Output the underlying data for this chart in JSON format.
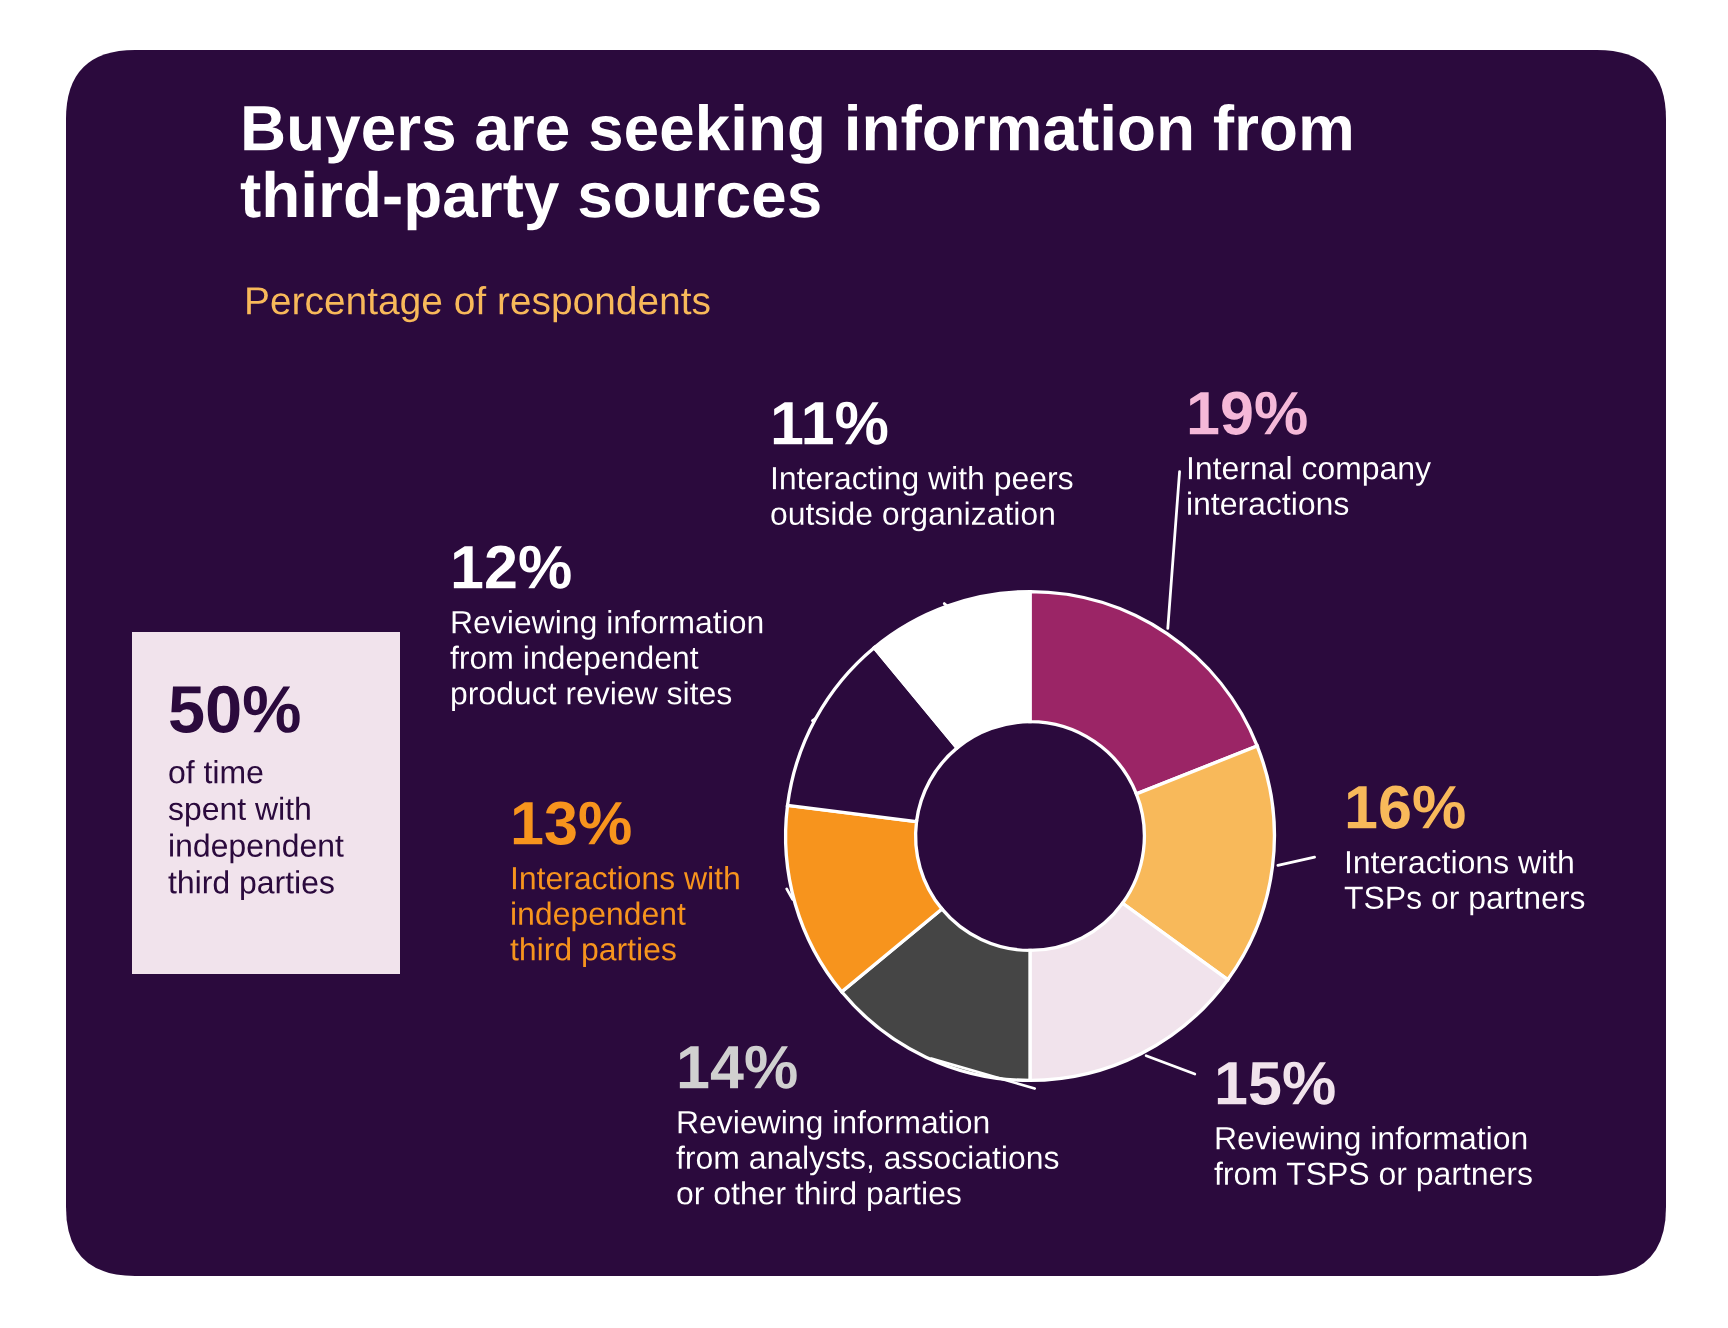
{
  "chart_data": {
    "type": "donut",
    "title": "Buyers are seeking information from\nthird-party sources",
    "subtitle": "Percentage of respondents",
    "categories": [
      "Internal company\ninteractions",
      "Interactions with\nTSPs or partners",
      "Reviewing information\nfrom TSPS or partners",
      "Reviewing information\nfrom analysts, associations\nor other third parties",
      "Interactions with\nindependent\nthird parties",
      "Reviewing information\nfrom independent\nproduct review sites",
      "Interacting with peers\noutside organization"
    ],
    "values": [
      19,
      16,
      15,
      14,
      13,
      12,
      11
    ],
    "value_labels": [
      "19%",
      "16%",
      "15%",
      "14%",
      "13%",
      "12%",
      "11%"
    ],
    "colors": [
      "#9b2566",
      "#f8b95a",
      "#f1e3ec",
      "#454545",
      "#f7941d",
      "#2b0a3d",
      "#ffffff"
    ],
    "annotations": [
      "50%",
      "of time\nspent with\nindependent\nthird parties"
    ]
  }
}
